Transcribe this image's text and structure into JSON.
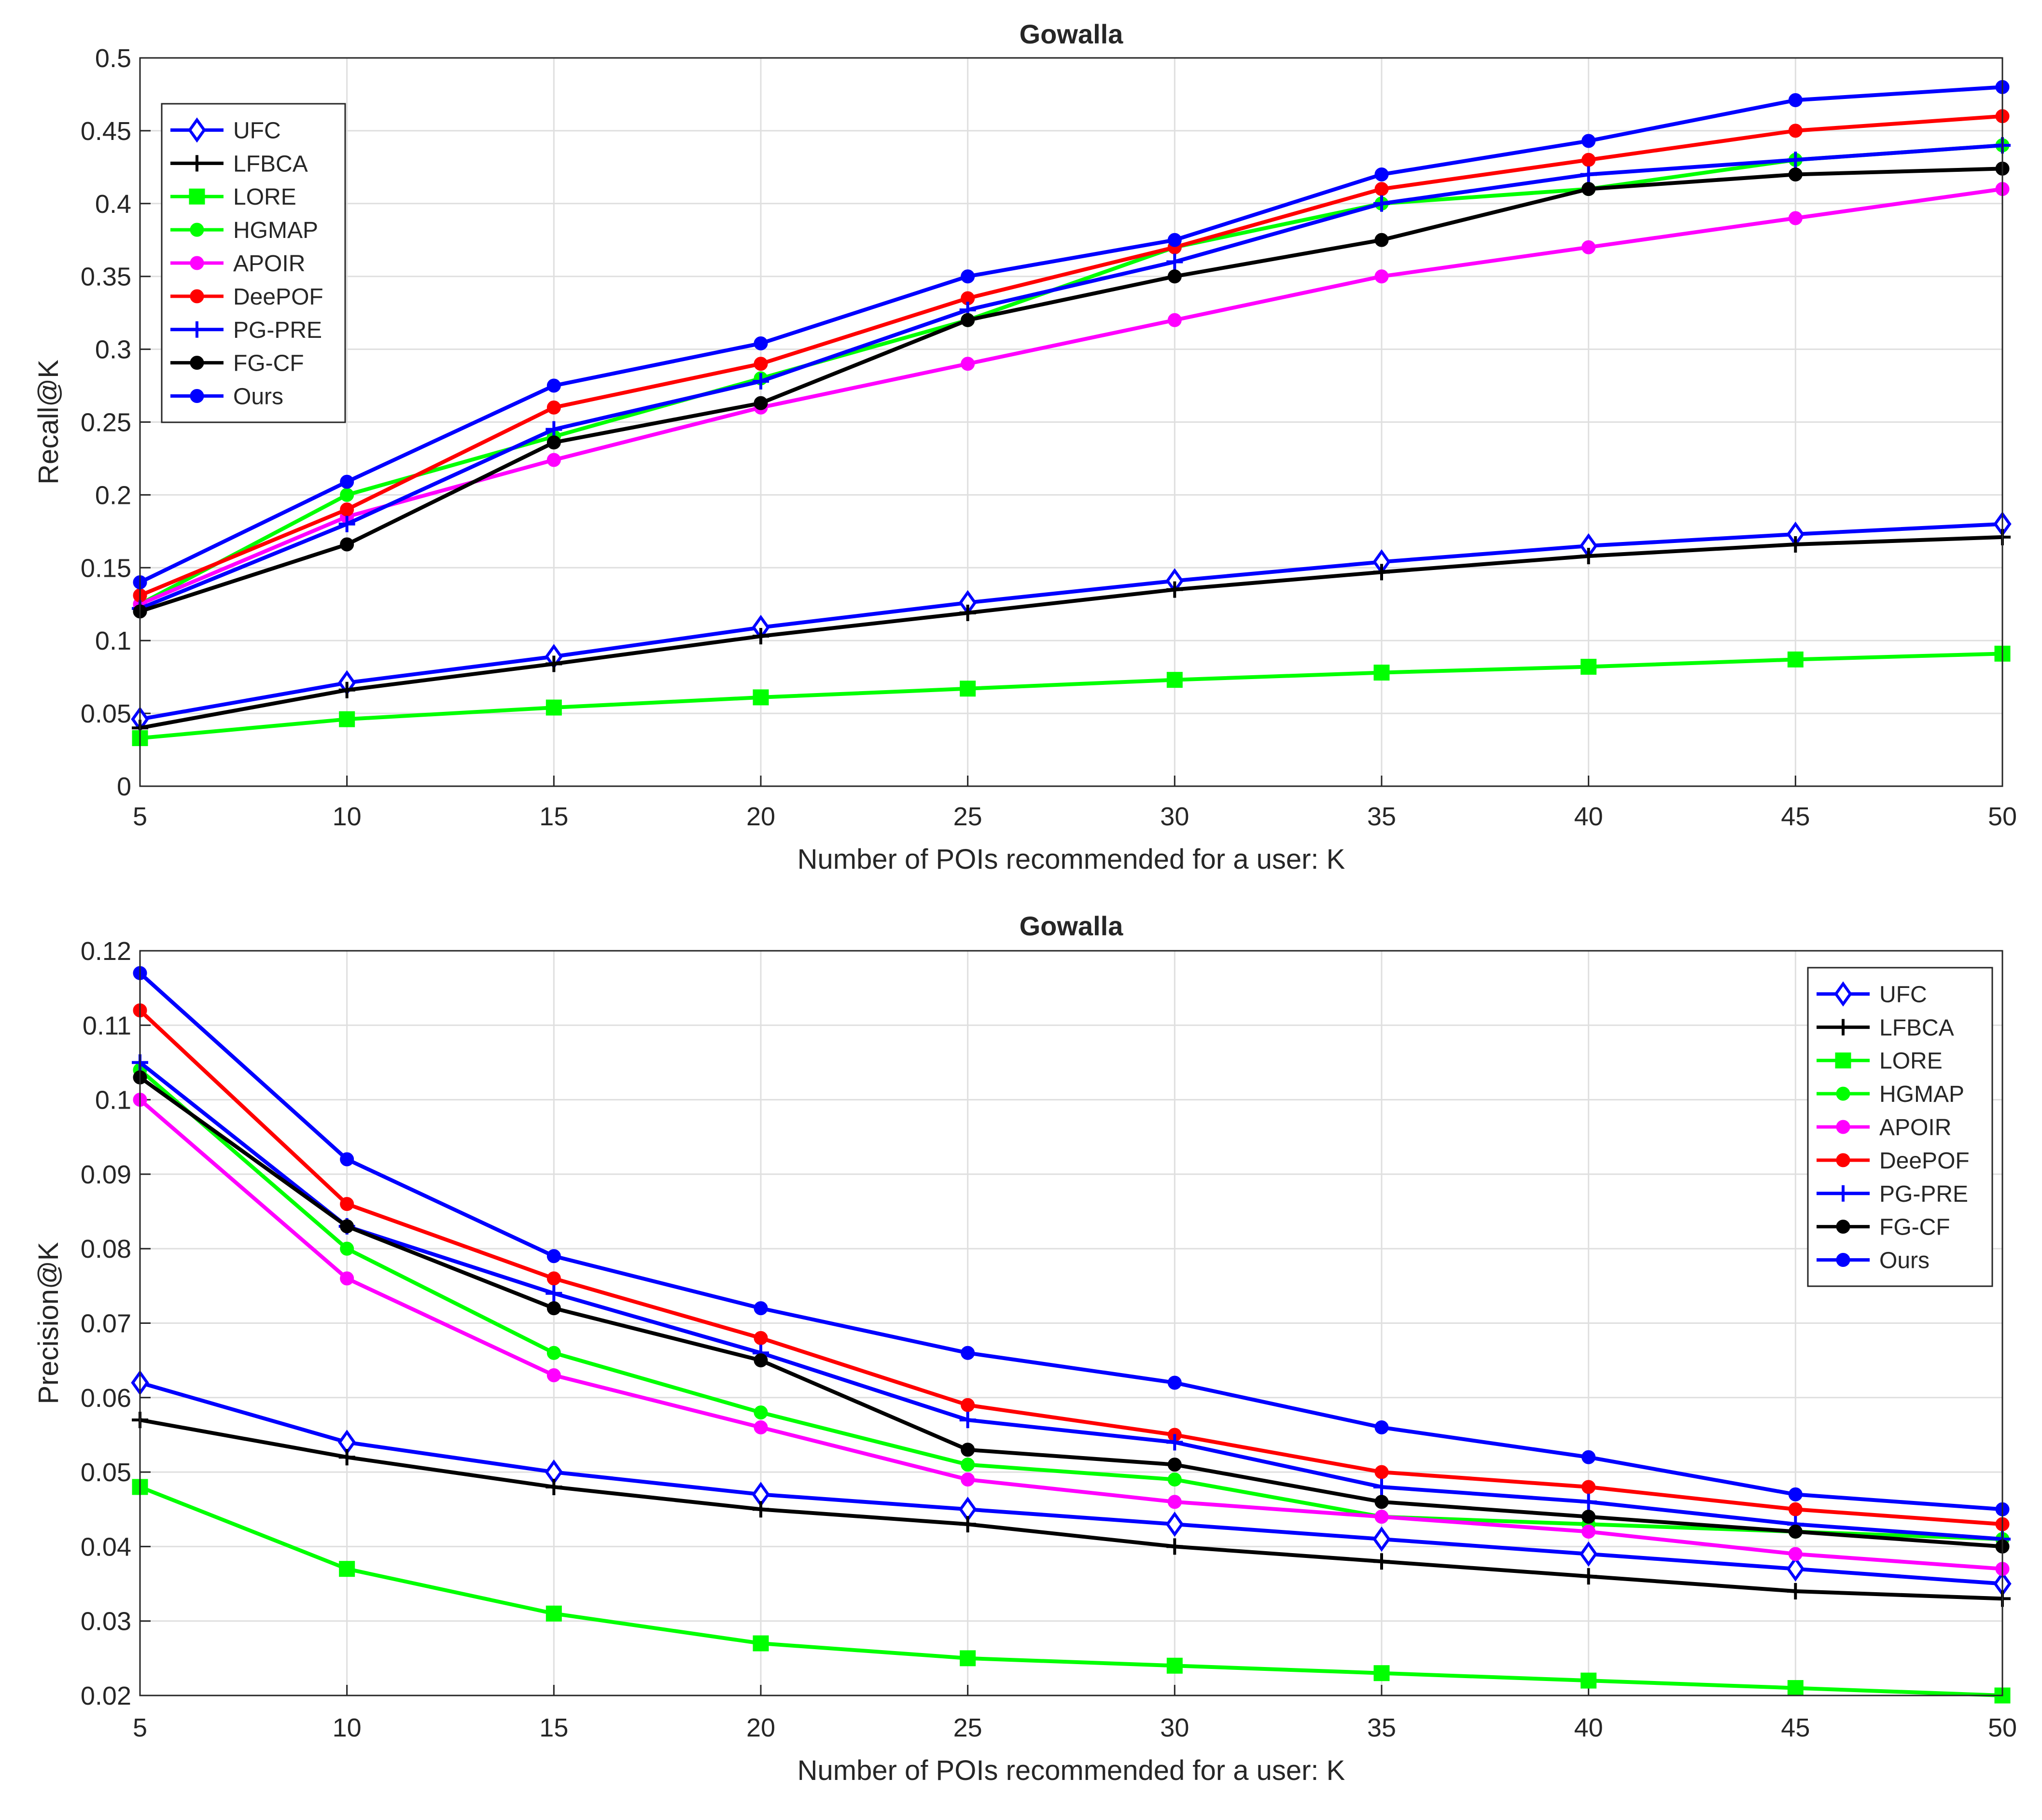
{
  "chart_data": [
    {
      "type": "line",
      "title": "Gowalla",
      "xlabel": "Number of POIs recommended for a user: K",
      "ylabel": "Recall@K",
      "x": [
        5,
        10,
        15,
        20,
        25,
        30,
        35,
        40,
        45,
        50
      ],
      "xlim": [
        5,
        50
      ],
      "ylim": [
        0,
        0.5
      ],
      "xticks": [
        "5",
        "10",
        "15",
        "20",
        "25",
        "30",
        "35",
        "40",
        "45",
        "50"
      ],
      "yticks": [
        "0",
        "0.05",
        "0.1",
        "0.15",
        "0.2",
        "0.25",
        "0.3",
        "0.35",
        "0.4",
        "0.45",
        "0.5"
      ],
      "grid": true,
      "legend_position": "top-left",
      "series": [
        {
          "name": "UFC",
          "color": "#0000ff",
          "marker": "diamond",
          "values": [
            0.046,
            0.071,
            0.089,
            0.109,
            0.126,
            0.141,
            0.154,
            0.165,
            0.173,
            0.18
          ]
        },
        {
          "name": "LFBCA",
          "color": "#000000",
          "marker": "plus",
          "values": [
            0.04,
            0.066,
            0.084,
            0.103,
            0.119,
            0.135,
            0.147,
            0.158,
            0.166,
            0.171
          ]
        },
        {
          "name": "LORE",
          "color": "#00ff00",
          "marker": "square",
          "values": [
            0.033,
            0.046,
            0.054,
            0.061,
            0.067,
            0.073,
            0.078,
            0.082,
            0.087,
            0.091
          ]
        },
        {
          "name": "HGMAP",
          "color": "#00ff00",
          "marker": "circle",
          "values": [
            0.125,
            0.2,
            0.24,
            0.28,
            0.32,
            0.37,
            0.4,
            0.41,
            0.43,
            0.44
          ]
        },
        {
          "name": "APOIR",
          "color": "#ff00ff",
          "marker": "circle",
          "values": [
            0.125,
            0.185,
            0.224,
            0.26,
            0.29,
            0.32,
            0.35,
            0.37,
            0.39,
            0.41
          ]
        },
        {
          "name": "DeePOF",
          "color": "#ff0000",
          "marker": "circle",
          "values": [
            0.131,
            0.19,
            0.26,
            0.29,
            0.335,
            0.37,
            0.41,
            0.43,
            0.45,
            0.46
          ]
        },
        {
          "name": "PG-PRE",
          "color": "#0000ff",
          "marker": "plus",
          "values": [
            0.122,
            0.18,
            0.245,
            0.278,
            0.327,
            0.36,
            0.4,
            0.42,
            0.43,
            0.44
          ]
        },
        {
          "name": "FG-CF",
          "color": "#000000",
          "marker": "circle",
          "values": [
            0.12,
            0.166,
            0.236,
            0.263,
            0.32,
            0.35,
            0.375,
            0.41,
            0.42,
            0.424
          ]
        },
        {
          "name": "Ours",
          "color": "#0000ff",
          "marker": "circle",
          "values": [
            0.14,
            0.209,
            0.275,
            0.304,
            0.35,
            0.375,
            0.42,
            0.443,
            0.471,
            0.48
          ]
        }
      ]
    },
    {
      "type": "line",
      "title": "Gowalla",
      "xlabel": "Number of POIs recommended for a user: K",
      "ylabel": "Precision@K",
      "x": [
        5,
        10,
        15,
        20,
        25,
        30,
        35,
        40,
        45,
        50
      ],
      "xlim": [
        5,
        50
      ],
      "ylim": [
        0.02,
        0.12
      ],
      "xticks": [
        "5",
        "10",
        "15",
        "20",
        "25",
        "30",
        "35",
        "40",
        "45",
        "50"
      ],
      "yticks": [
        "0.02",
        "0.03",
        "0.04",
        "0.05",
        "0.06",
        "0.07",
        "0.08",
        "0.09",
        "0.1",
        "0.11",
        "0.12"
      ],
      "grid": true,
      "legend_position": "top-right",
      "series": [
        {
          "name": "UFC",
          "color": "#0000ff",
          "marker": "diamond",
          "values": [
            0.062,
            0.054,
            0.05,
            0.047,
            0.045,
            0.043,
            0.041,
            0.039,
            0.037,
            0.035
          ]
        },
        {
          "name": "LFBCA",
          "color": "#000000",
          "marker": "plus",
          "values": [
            0.057,
            0.052,
            0.048,
            0.045,
            0.043,
            0.04,
            0.038,
            0.036,
            0.034,
            0.033
          ]
        },
        {
          "name": "LORE",
          "color": "#00ff00",
          "marker": "square",
          "values": [
            0.048,
            0.037,
            0.031,
            0.027,
            0.025,
            0.024,
            0.023,
            0.022,
            0.021,
            0.02
          ]
        },
        {
          "name": "HGMAP",
          "color": "#00ff00",
          "marker": "circle",
          "values": [
            0.104,
            0.08,
            0.066,
            0.058,
            0.051,
            0.049,
            0.044,
            0.043,
            0.042,
            0.041
          ]
        },
        {
          "name": "APOIR",
          "color": "#ff00ff",
          "marker": "circle",
          "values": [
            0.1,
            0.076,
            0.063,
            0.056,
            0.049,
            0.046,
            0.044,
            0.042,
            0.039,
            0.037
          ]
        },
        {
          "name": "DeePOF",
          "color": "#ff0000",
          "marker": "circle",
          "values": [
            0.112,
            0.086,
            0.076,
            0.068,
            0.059,
            0.055,
            0.05,
            0.048,
            0.045,
            0.043
          ]
        },
        {
          "name": "PG-PRE",
          "color": "#0000ff",
          "marker": "plus",
          "values": [
            0.105,
            0.083,
            0.074,
            0.066,
            0.057,
            0.054,
            0.048,
            0.046,
            0.043,
            0.041
          ]
        },
        {
          "name": "FG-CF",
          "color": "#000000",
          "marker": "circle",
          "values": [
            0.103,
            0.083,
            0.072,
            0.065,
            0.053,
            0.051,
            0.046,
            0.044,
            0.042,
            0.04
          ]
        },
        {
          "name": "Ours",
          "color": "#0000ff",
          "marker": "circle",
          "values": [
            0.117,
            0.092,
            0.079,
            0.072,
            0.066,
            0.062,
            0.056,
            0.052,
            0.047,
            0.045
          ]
        }
      ]
    }
  ]
}
